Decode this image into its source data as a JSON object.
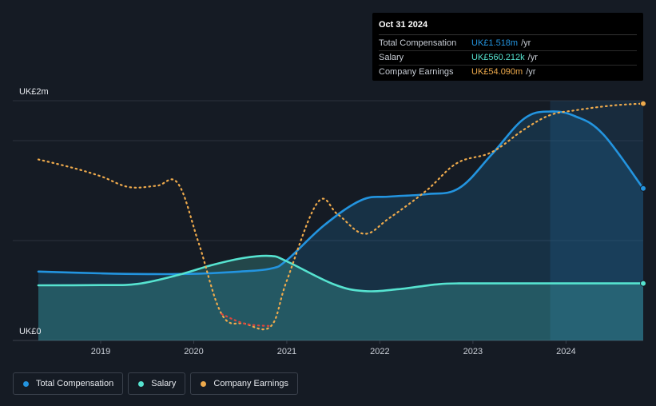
{
  "chart_data": {
    "type": "line",
    "y_unit_labels": [
      "UK£0",
      "UK£2m"
    ],
    "ylim": [
      0,
      2.0
    ],
    "xlim": [
      2018.33,
      2024.83
    ],
    "x_ticks": [
      "2019",
      "2020",
      "2021",
      "2022",
      "2023",
      "2024"
    ],
    "x_tick_values": [
      2019,
      2020,
      2021,
      2022,
      2023,
      2024
    ],
    "series": [
      {
        "name": "Total Compensation",
        "color": "#2394df",
        "filled": true,
        "points": [
          [
            2018.33,
            0.575
          ],
          [
            2019.0,
            0.56
          ],
          [
            2019.5,
            0.554
          ],
          [
            2020.0,
            0.556
          ],
          [
            2020.5,
            0.575
          ],
          [
            2020.83,
            0.6
          ],
          [
            2021.0,
            0.67
          ],
          [
            2021.4,
            0.96
          ],
          [
            2021.8,
            1.17
          ],
          [
            2022.1,
            1.2
          ],
          [
            2022.5,
            1.22
          ],
          [
            2022.85,
            1.27
          ],
          [
            2023.2,
            1.55
          ],
          [
            2023.55,
            1.85
          ],
          [
            2023.83,
            1.91
          ],
          [
            2024.1,
            1.87
          ],
          [
            2024.4,
            1.72
          ],
          [
            2024.83,
            1.268
          ]
        ]
      },
      {
        "name": "Salary",
        "color": "#56e3d0",
        "filled": true,
        "points": [
          [
            2018.33,
            0.46
          ],
          [
            2019.0,
            0.462
          ],
          [
            2019.4,
            0.472
          ],
          [
            2019.85,
            0.55
          ],
          [
            2020.2,
            0.63
          ],
          [
            2020.55,
            0.69
          ],
          [
            2020.83,
            0.705
          ],
          [
            2021.0,
            0.66
          ],
          [
            2021.5,
            0.47
          ],
          [
            2021.83,
            0.412
          ],
          [
            2022.2,
            0.428
          ],
          [
            2022.6,
            0.467
          ],
          [
            2022.85,
            0.476
          ],
          [
            2023.5,
            0.476
          ],
          [
            2024.83,
            0.476
          ]
        ]
      },
      {
        "name": "Company Earnings",
        "color": "#eeaa4c",
        "dashed": true,
        "points": [
          [
            2018.33,
            1.51
          ],
          [
            2018.7,
            1.44
          ],
          [
            2019.0,
            1.37
          ],
          [
            2019.3,
            1.28
          ],
          [
            2019.6,
            1.29
          ],
          [
            2019.83,
            1.31
          ],
          [
            2020.05,
            0.82
          ],
          [
            2020.3,
            0.22
          ],
          [
            2020.55,
            0.14
          ],
          [
            2020.83,
            0.12
          ],
          [
            2021.0,
            0.5
          ],
          [
            2021.33,
            1.15
          ],
          [
            2021.55,
            1.05
          ],
          [
            2021.83,
            0.89
          ],
          [
            2022.1,
            1.02
          ],
          [
            2022.5,
            1.25
          ],
          [
            2022.83,
            1.48
          ],
          [
            2023.2,
            1.57
          ],
          [
            2023.55,
            1.76
          ],
          [
            2023.83,
            1.88
          ],
          [
            2024.1,
            1.92
          ],
          [
            2024.5,
            1.96
          ],
          [
            2024.83,
            1.976
          ]
        ],
        "negative_segment": [
          2020.3,
          2020.83
        ]
      }
    ],
    "forecast_shade_start": 2023.83,
    "legend_position": "bottom-left"
  },
  "tooltip": {
    "date": "Oct 31 2024",
    "rows": [
      {
        "name": "Total Compensation",
        "value": "UK£1.518m",
        "unit": "/yr",
        "color": "#2394df"
      },
      {
        "name": "Salary",
        "value": "UK£560.212k",
        "unit": "/yr",
        "color": "#56e3d0"
      },
      {
        "name": "Company Earnings",
        "value": "UK£54.090m",
        "unit": "/yr",
        "color": "#eeaa4c"
      }
    ]
  },
  "legend": [
    {
      "label": "Total Compensation",
      "color": "#2394df"
    },
    {
      "label": "Salary",
      "color": "#56e3d0"
    },
    {
      "label": "Company Earnings",
      "color": "#eeaa4c"
    }
  ]
}
